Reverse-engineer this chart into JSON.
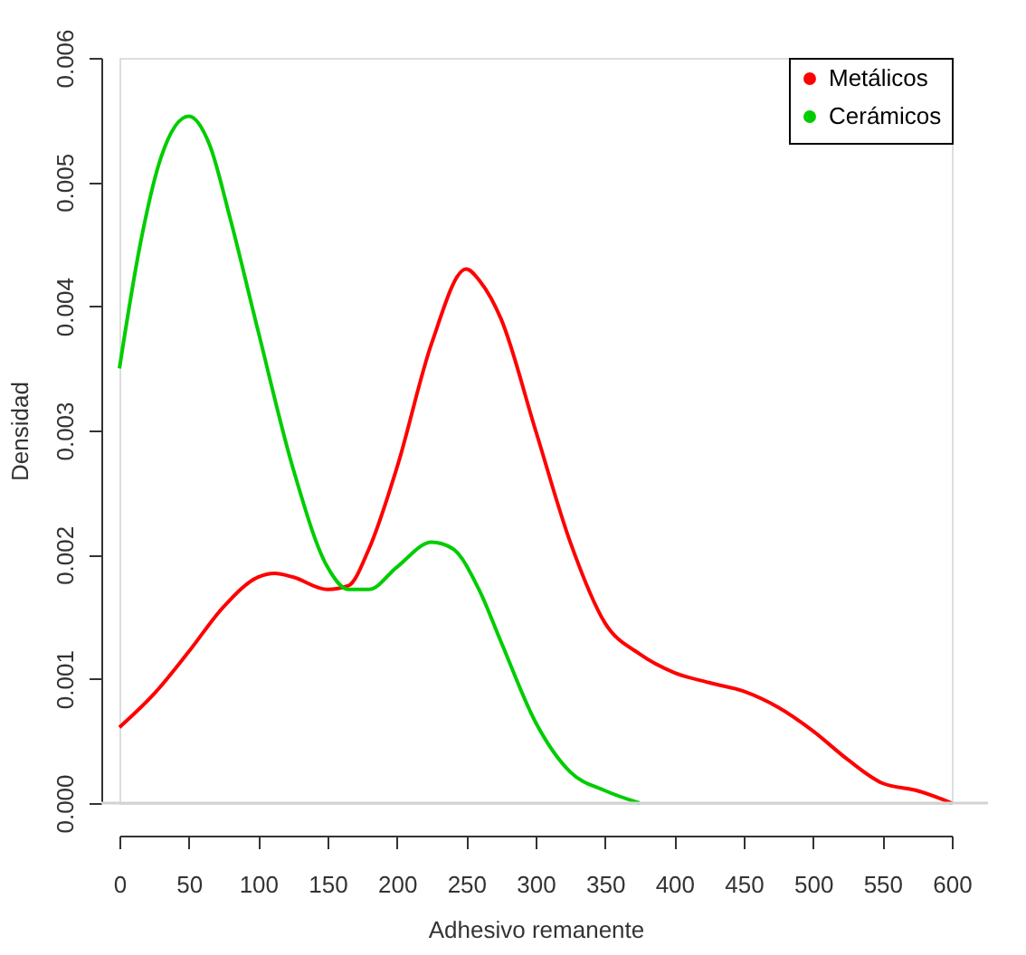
{
  "chart_data": {
    "type": "line",
    "xlabel": "Adhesivo remanente",
    "ylabel": "Densidad",
    "xlim": [
      0,
      600
    ],
    "xticks": [
      0,
      50,
      100,
      150,
      200,
      250,
      300,
      350,
      400,
      450,
      500,
      550,
      600
    ],
    "ylim": [
      0,
      0.006
    ],
    "yticks": [
      {
        "value": 0,
        "label": "0.000"
      },
      {
        "value": 0.001,
        "label": "0.001"
      },
      {
        "value": 0.002,
        "label": "0.002"
      },
      {
        "value": 0.003,
        "label": "0.003"
      },
      {
        "value": 0.004,
        "label": "0.004"
      },
      {
        "value": 0.005,
        "label": "0.005"
      },
      {
        "value": 0.006,
        "label": "0.006"
      }
    ],
    "grid": false,
    "legend": "top right",
    "marker": "none",
    "line_style": "solid",
    "ref_lines": [
      {
        "axis": "y",
        "value": 0,
        "color": "#d3d3d3"
      }
    ],
    "series": [
      {
        "name": "Metálicos",
        "color": "#ff0000",
        "x": [
          0,
          25,
          50,
          75,
          100,
          112,
          125,
          150,
          165,
          180,
          200,
          225,
          250,
          260,
          275,
          300,
          325,
          350,
          375,
          400,
          425,
          450,
          475,
          500,
          525,
          550,
          575,
          600
        ],
        "values": [
          0.00061,
          0.00088,
          0.00122,
          0.00158,
          0.00182,
          0.00185,
          0.00182,
          0.00172,
          0.00175,
          0.00205,
          0.0027,
          0.0037,
          0.0043,
          0.0042,
          0.0039,
          0.003,
          0.0021,
          0.00145,
          0.0012,
          0.00105,
          0.00097,
          0.0009,
          0.00077,
          0.00058,
          0.00035,
          0.00016,
          0.0001,
          0.0
        ]
      },
      {
        "name": "Cerámicos",
        "color": "#00cd00",
        "x": [
          0,
          15,
          30,
          50,
          65,
          80,
          100,
          125,
          150,
          165,
          180,
          200,
          225,
          240,
          260,
          275,
          300,
          325,
          350,
          375
        ],
        "values": [
          0.0035,
          0.0045,
          0.0052,
          0.00553,
          0.0053,
          0.0047,
          0.0038,
          0.0027,
          0.0019,
          0.00172,
          0.00172,
          0.0019,
          0.0021,
          0.00205,
          0.0017,
          0.0013,
          0.00065,
          0.00025,
          0.0001,
          0.0
        ]
      }
    ]
  }
}
